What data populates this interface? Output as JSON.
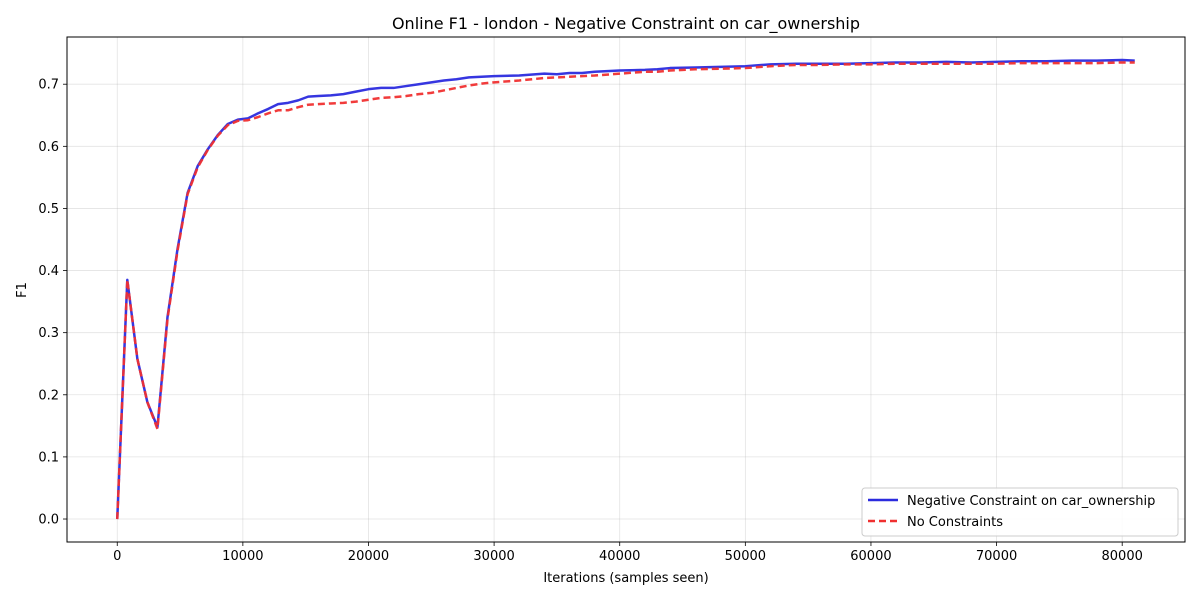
{
  "chart_data": {
    "type": "line",
    "title": "Online F1 - london - Negative Constraint on car_ownership",
    "xlabel": "Iterations (samples seen)",
    "ylabel": "F1",
    "xlim": [
      -4000,
      85000
    ],
    "ylim": [
      -0.037,
      0.776
    ],
    "xticks": [
      0,
      10000,
      20000,
      30000,
      40000,
      50000,
      60000,
      70000,
      80000
    ],
    "yticks": [
      0.0,
      0.1,
      0.2,
      0.3,
      0.4,
      0.5,
      0.6,
      0.7
    ],
    "xtick_labels": [
      "0",
      "10000",
      "20000",
      "30000",
      "40000",
      "50000",
      "60000",
      "70000",
      "80000"
    ],
    "ytick_labels": [
      "0.0",
      "0.1",
      "0.2",
      "0.3",
      "0.4",
      "0.5",
      "0.6",
      "0.7"
    ],
    "grid": true,
    "legend_position": "bottom-right",
    "series": [
      {
        "name": "Negative Constraint on car_ownership",
        "color": "#2b2bde",
        "style": "solid",
        "x": [
          0,
          800,
          1600,
          2400,
          3200,
          4000,
          4800,
          5600,
          6400,
          7200,
          8000,
          8800,
          9600,
          10400,
          11200,
          12000,
          12800,
          13600,
          14400,
          15200,
          16000,
          17000,
          18000,
          19000,
          20000,
          21000,
          22000,
          23000,
          24000,
          25000,
          26000,
          27000,
          28000,
          29000,
          30000,
          32000,
          34000,
          35000,
          36000,
          37000,
          38000,
          40000,
          42000,
          43000,
          44000,
          46000,
          48000,
          50000,
          52000,
          54000,
          56000,
          58000,
          60000,
          62000,
          64000,
          66000,
          68000,
          70000,
          72000,
          74000,
          76000,
          78000,
          80000,
          81000
        ],
        "y": [
          0.0,
          0.385,
          0.258,
          0.188,
          0.148,
          0.325,
          0.435,
          0.525,
          0.568,
          0.595,
          0.618,
          0.636,
          0.643,
          0.645,
          0.653,
          0.66,
          0.668,
          0.67,
          0.674,
          0.68,
          0.681,
          0.682,
          0.684,
          0.688,
          0.692,
          0.694,
          0.694,
          0.697,
          0.7,
          0.703,
          0.706,
          0.708,
          0.711,
          0.712,
          0.713,
          0.714,
          0.717,
          0.716,
          0.718,
          0.718,
          0.72,
          0.722,
          0.723,
          0.724,
          0.726,
          0.727,
          0.728,
          0.729,
          0.732,
          0.733,
          0.733,
          0.733,
          0.734,
          0.735,
          0.735,
          0.736,
          0.735,
          0.736,
          0.737,
          0.737,
          0.738,
          0.738,
          0.739,
          0.738
        ]
      },
      {
        "name": "No Constraints",
        "color": "#f03030",
        "style": "dashed",
        "x": [
          0,
          800,
          1600,
          2400,
          3200,
          4000,
          4800,
          5600,
          6400,
          7200,
          8000,
          8800,
          9600,
          10400,
          11200,
          12000,
          12800,
          13600,
          14400,
          15200,
          16000,
          17000,
          18000,
          19000,
          20000,
          21000,
          22000,
          23000,
          24000,
          25000,
          26000,
          27000,
          28000,
          29000,
          30000,
          32000,
          34000,
          35000,
          36000,
          37000,
          38000,
          40000,
          42000,
          43000,
          44000,
          46000,
          48000,
          50000,
          52000,
          54000,
          56000,
          58000,
          60000,
          62000,
          64000,
          66000,
          68000,
          70000,
          72000,
          74000,
          76000,
          78000,
          80000,
          81000
        ],
        "y": [
          0.0,
          0.385,
          0.258,
          0.188,
          0.145,
          0.322,
          0.432,
          0.523,
          0.566,
          0.594,
          0.617,
          0.634,
          0.641,
          0.642,
          0.647,
          0.653,
          0.658,
          0.658,
          0.663,
          0.667,
          0.668,
          0.669,
          0.67,
          0.672,
          0.675,
          0.678,
          0.679,
          0.681,
          0.684,
          0.686,
          0.69,
          0.694,
          0.698,
          0.701,
          0.703,
          0.706,
          0.71,
          0.711,
          0.712,
          0.713,
          0.714,
          0.717,
          0.72,
          0.72,
          0.722,
          0.724,
          0.725,
          0.726,
          0.729,
          0.731,
          0.731,
          0.732,
          0.732,
          0.733,
          0.733,
          0.733,
          0.733,
          0.733,
          0.734,
          0.734,
          0.734,
          0.734,
          0.735,
          0.735
        ]
      }
    ]
  }
}
